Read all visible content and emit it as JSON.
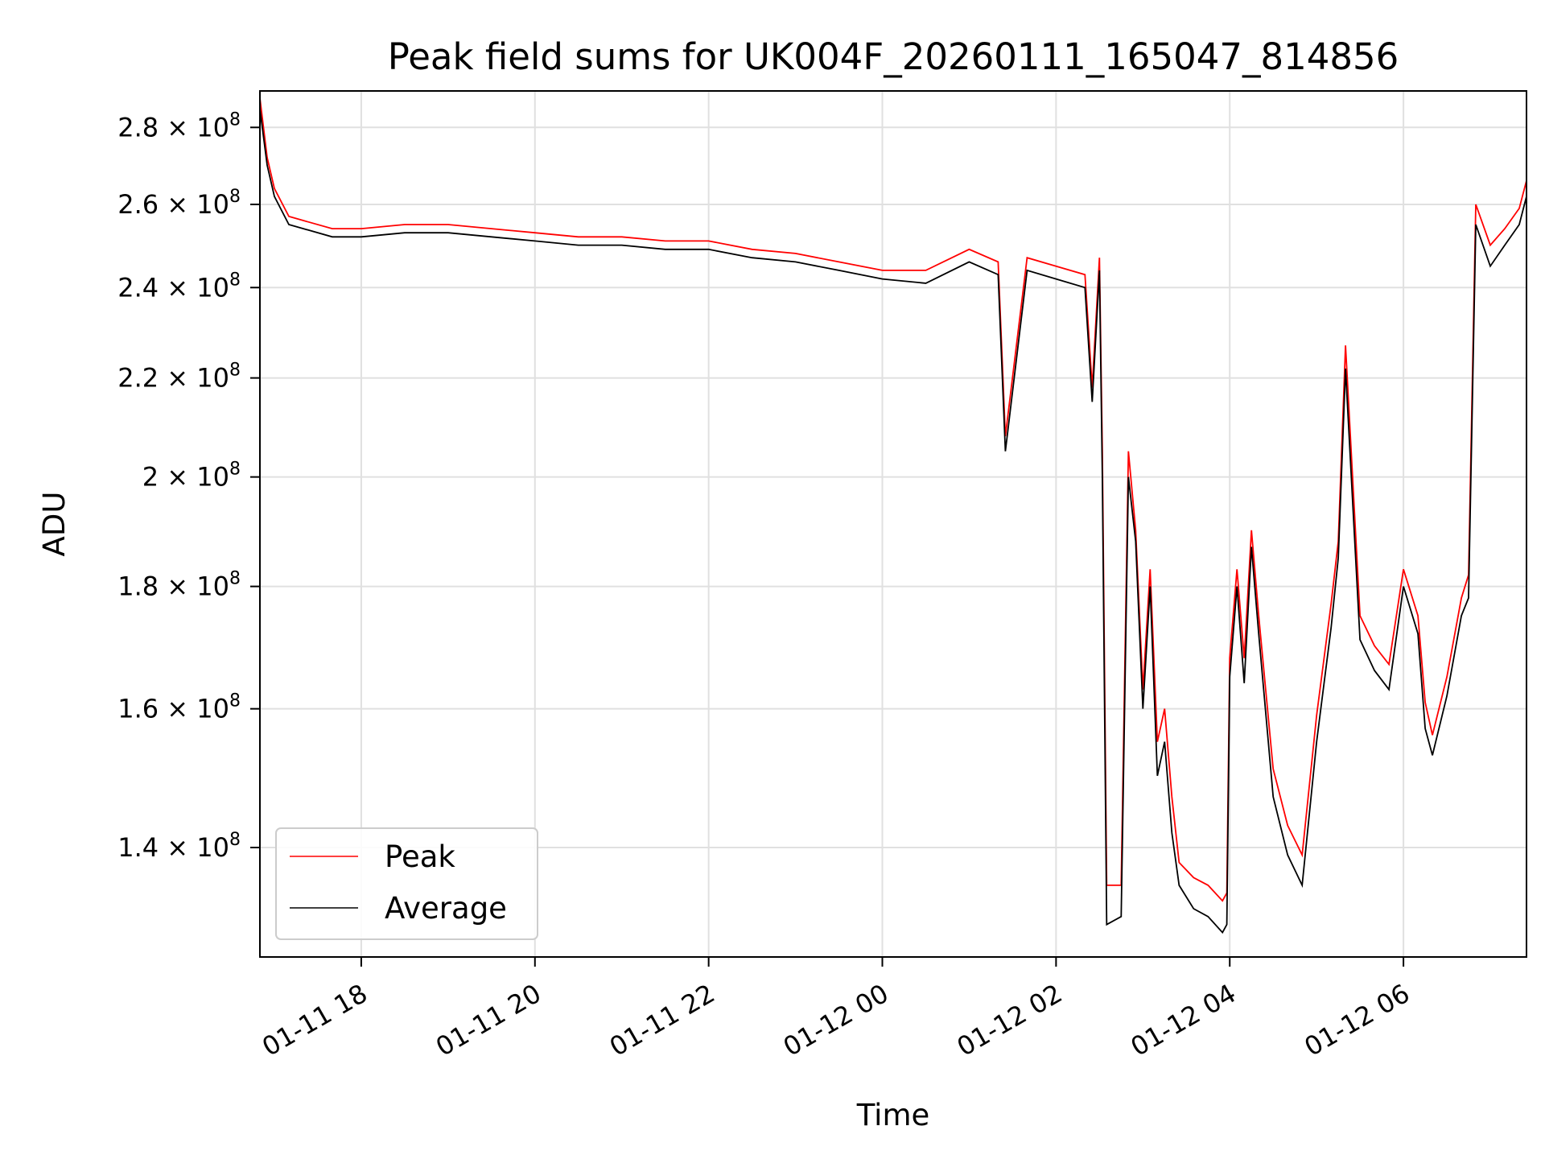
{
  "chart_data": {
    "type": "line",
    "title": "Peak field sums for UK004F_20260111_165047_814856",
    "xlabel": "Time",
    "ylabel": "ADU",
    "y_scale": "log",
    "xlim": [
      "2026-01-11 16:50",
      "2026-01-12 07:25"
    ],
    "ylim": [
      126000000,
      290000000
    ],
    "grid": true,
    "legend_position": "lower-left",
    "x_ticks": [
      {
        "value": "2026-01-11 18:00",
        "label": "01-11 18"
      },
      {
        "value": "2026-01-11 20:00",
        "label": "01-11 20"
      },
      {
        "value": "2026-01-11 22:00",
        "label": "01-11 22"
      },
      {
        "value": "2026-01-12 00:00",
        "label": "01-12 00"
      },
      {
        "value": "2026-01-12 02:00",
        "label": "01-12 02"
      },
      {
        "value": "2026-01-12 04:00",
        "label": "01-12 04"
      },
      {
        "value": "2026-01-12 06:00",
        "label": "01-12 06"
      }
    ],
    "y_ticks": [
      {
        "value": 140000000,
        "mantissa": "1.4",
        "base": "10",
        "exp": "8"
      },
      {
        "value": 160000000,
        "mantissa": "1.6",
        "base": "10",
        "exp": "8"
      },
      {
        "value": 180000000,
        "mantissa": "1.8",
        "base": "10",
        "exp": "8"
      },
      {
        "value": 200000000,
        "mantissa": "2",
        "base": "10",
        "exp": "8"
      },
      {
        "value": 220000000,
        "mantissa": "2.2",
        "base": "10",
        "exp": "8"
      },
      {
        "value": 240000000,
        "mantissa": "2.4",
        "base": "10",
        "exp": "8"
      },
      {
        "value": 260000000,
        "mantissa": "2.6",
        "base": "10",
        "exp": "8"
      },
      {
        "value": 280000000,
        "mantissa": "2.8",
        "base": "10",
        "exp": "8"
      }
    ],
    "series": [
      {
        "name": "Peak",
        "color": "#ff0000"
      },
      {
        "name": "Average",
        "color": "#000000"
      }
    ],
    "x": [
      "2026-01-11 16:50",
      "2026-01-11 16:55",
      "2026-01-11 17:00",
      "2026-01-11 17:10",
      "2026-01-11 17:20",
      "2026-01-11 17:40",
      "2026-01-11 18:00",
      "2026-01-11 18:30",
      "2026-01-11 19:00",
      "2026-01-11 19:30",
      "2026-01-11 20:00",
      "2026-01-11 20:30",
      "2026-01-11 21:00",
      "2026-01-11 21:30",
      "2026-01-11 22:00",
      "2026-01-11 22:30",
      "2026-01-11 23:00",
      "2026-01-11 23:30",
      "2026-01-12 00:00",
      "2026-01-12 00:30",
      "2026-01-12 01:00",
      "2026-01-12 01:20",
      "2026-01-12 01:25",
      "2026-01-12 01:40",
      "2026-01-12 02:00",
      "2026-01-12 02:20",
      "2026-01-12 02:25",
      "2026-01-12 02:30",
      "2026-01-12 02:32",
      "2026-01-12 02:35",
      "2026-01-12 02:45",
      "2026-01-12 02:50",
      "2026-01-12 02:55",
      "2026-01-12 03:00",
      "2026-01-12 03:05",
      "2026-01-12 03:10",
      "2026-01-12 03:15",
      "2026-01-12 03:20",
      "2026-01-12 03:25",
      "2026-01-12 03:35",
      "2026-01-12 03:45",
      "2026-01-12 03:55",
      "2026-01-12 03:58",
      "2026-01-12 04:00",
      "2026-01-12 04:05",
      "2026-01-12 04:10",
      "2026-01-12 04:15",
      "2026-01-12 04:20",
      "2026-01-12 04:30",
      "2026-01-12 04:40",
      "2026-01-12 04:50",
      "2026-01-12 05:00",
      "2026-01-12 05:10",
      "2026-01-12 05:15",
      "2026-01-12 05:20",
      "2026-01-12 05:30",
      "2026-01-12 05:40",
      "2026-01-12 05:50",
      "2026-01-12 06:00",
      "2026-01-12 06:10",
      "2026-01-12 06:15",
      "2026-01-12 06:20",
      "2026-01-12 06:30",
      "2026-01-12 06:40",
      "2026-01-12 06:45",
      "2026-01-12 06:50",
      "2026-01-12 07:00",
      "2026-01-12 07:10",
      "2026-01-12 07:20",
      "2026-01-12 07:25"
    ],
    "average": [
      285000000,
      270000000,
      262000000,
      255000000,
      254000000,
      252000000,
      252000000,
      253000000,
      253000000,
      252000000,
      251000000,
      250000000,
      250000000,
      249000000,
      249000000,
      247000000,
      246000000,
      244000000,
      242000000,
      241000000,
      246000000,
      243000000,
      205000000,
      244000000,
      242000000,
      240000000,
      215000000,
      244000000,
      200000000,
      130000000,
      131000000,
      200000000,
      188000000,
      160000000,
      180000000,
      150000000,
      155000000,
      142000000,
      135000000,
      132000000,
      131000000,
      129000000,
      130000000,
      165000000,
      180000000,
      164000000,
      187000000,
      172000000,
      147000000,
      139000000,
      135000000,
      155000000,
      173000000,
      185000000,
      222000000,
      171000000,
      166000000,
      163000000,
      180000000,
      172000000,
      157000000,
      153000000,
      162000000,
      175000000,
      178000000,
      255000000,
      245000000,
      250000000,
      255000000,
      262000000
    ],
    "peak": [
      288000000,
      272000000,
      264000000,
      257000000,
      256000000,
      254000000,
      254000000,
      255000000,
      255000000,
      254000000,
      253000000,
      252000000,
      252000000,
      251000000,
      251000000,
      249000000,
      248000000,
      246000000,
      244000000,
      244000000,
      249000000,
      246000000,
      208000000,
      247000000,
      245000000,
      243000000,
      218000000,
      247000000,
      205000000,
      135000000,
      135000000,
      205000000,
      190000000,
      163000000,
      183000000,
      155000000,
      160000000,
      147000000,
      138000000,
      136000000,
      135000000,
      133000000,
      134000000,
      168000000,
      183000000,
      168000000,
      190000000,
      175000000,
      151000000,
      143000000,
      139000000,
      159000000,
      177000000,
      188000000,
      227000000,
      175000000,
      170000000,
      167000000,
      183000000,
      175000000,
      161000000,
      156000000,
      165000000,
      178000000,
      182000000,
      260000000,
      250000000,
      254000000,
      259000000,
      266000000
    ]
  }
}
